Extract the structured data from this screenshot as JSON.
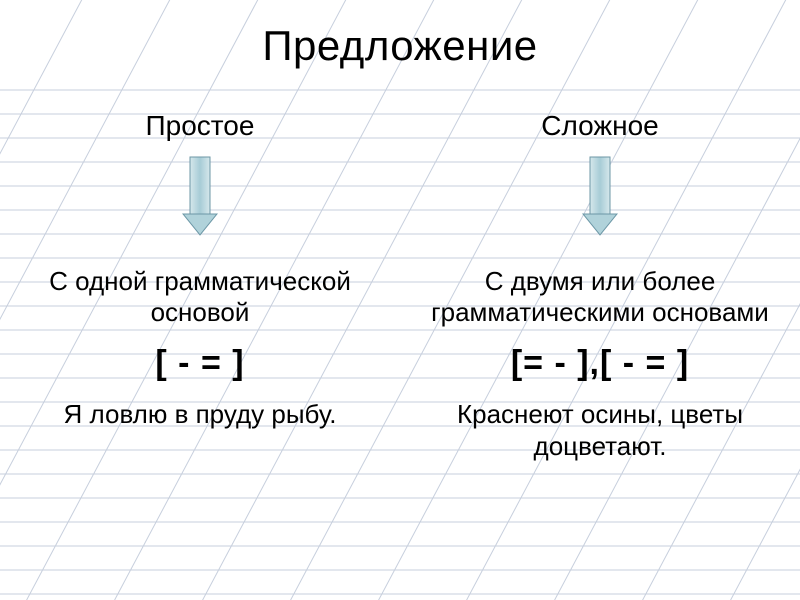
{
  "title": "Предложение",
  "grid": {
    "horizontal_color": "#c7cfdd",
    "diagonal_color": "#c7cfdd",
    "horizontal_spacing": 24,
    "diagonal_spacing": 88,
    "diagonal_angle_deg": 62,
    "stroke_width": 1
  },
  "arrow": {
    "body_fill": "#b0d2da",
    "body_stroke": "#6c97a6",
    "head_fill": "#b0d2da",
    "head_stroke": "#6c97a6",
    "width": 36,
    "height": 80,
    "head_height": 22,
    "body_width": 20
  },
  "columns": [
    {
      "heading": "Простое",
      "desc": "С одной грамматической основой",
      "schema": "[ - = ]",
      "example": "Я ловлю в пруду рыбу."
    },
    {
      "heading": "Сложное",
      "desc": "С двумя или более грамматическими основами",
      "schema": "[= - ],[ - = ]",
      "example": "Краснеют осины, цветы доцветают."
    }
  ],
  "colors": {
    "background": "#ffffff",
    "text": "#000000"
  },
  "typography": {
    "title_fontsize": 42,
    "heading_fontsize": 28,
    "desc_fontsize": 26,
    "schema_fontsize": 34,
    "example_fontsize": 26,
    "font_family": "Arial"
  }
}
